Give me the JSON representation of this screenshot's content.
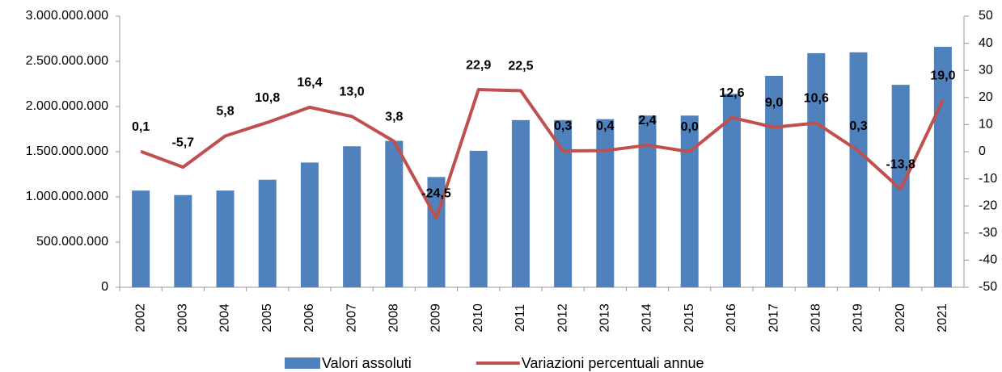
{
  "chart_data": {
    "type": "bar-line",
    "categories": [
      "2002",
      "2003",
      "2004",
      "2005",
      "2006",
      "2007",
      "2008",
      "2009",
      "2010",
      "2011",
      "2012",
      "2013",
      "2014",
      "2015",
      "2016",
      "2017",
      "2018",
      "2019",
      "2020",
      "2021"
    ],
    "series": [
      {
        "name": "Valori assoluti",
        "type": "bar",
        "color": "#4f81bd",
        "values": [
          1070000000,
          1020000000,
          1070000000,
          1190000000,
          1380000000,
          1560000000,
          1620000000,
          1220000000,
          1510000000,
          1850000000,
          1850000000,
          1860000000,
          1900000000,
          1900000000,
          2140000000,
          2340000000,
          2590000000,
          2600000000,
          2240000000,
          2660000000
        ]
      },
      {
        "name": "Variazioni percentuali annue",
        "type": "line",
        "axis": "y2",
        "color": "#c0504d",
        "values": [
          0.1,
          -5.7,
          5.8,
          10.8,
          16.4,
          13.0,
          3.8,
          -24.5,
          22.9,
          22.5,
          0.3,
          0.4,
          2.4,
          0.0,
          12.6,
          9.0,
          10.6,
          0.3,
          -13.8,
          19.0
        ],
        "value_labels": [
          "0,1",
          "-5,7",
          "5,8",
          "10,8",
          "16,4",
          "13,0",
          "3,8",
          "-24,5",
          "22,9",
          "22,5",
          "0,3",
          "0,4",
          "2,4",
          "0,0",
          "12,6",
          "9,0",
          "10,6",
          "0,3",
          "-13,8",
          "19,0"
        ]
      }
    ],
    "ylim": [
      0,
      3000000000
    ],
    "yticks": [
      0,
      {
        "value": 500000000,
        "label": "500.000.000"
      },
      {
        "value": 1000000000,
        "label": "1.000.000.000"
      },
      {
        "value": 1500000000,
        "label": "1.500.000.000"
      },
      {
        "value": 2000000000,
        "label": "2.000.000.000"
      },
      {
        "value": 2500000000,
        "label": "2.500.000.000"
      },
      {
        "value": 3000000000,
        "label": "3.000.000.000"
      }
    ],
    "y2lim": [
      -50,
      50
    ],
    "y2ticks": [
      -50,
      -40,
      -30,
      -20,
      -10,
      0,
      10,
      20,
      30,
      40,
      50
    ],
    "legend": "bottom"
  }
}
